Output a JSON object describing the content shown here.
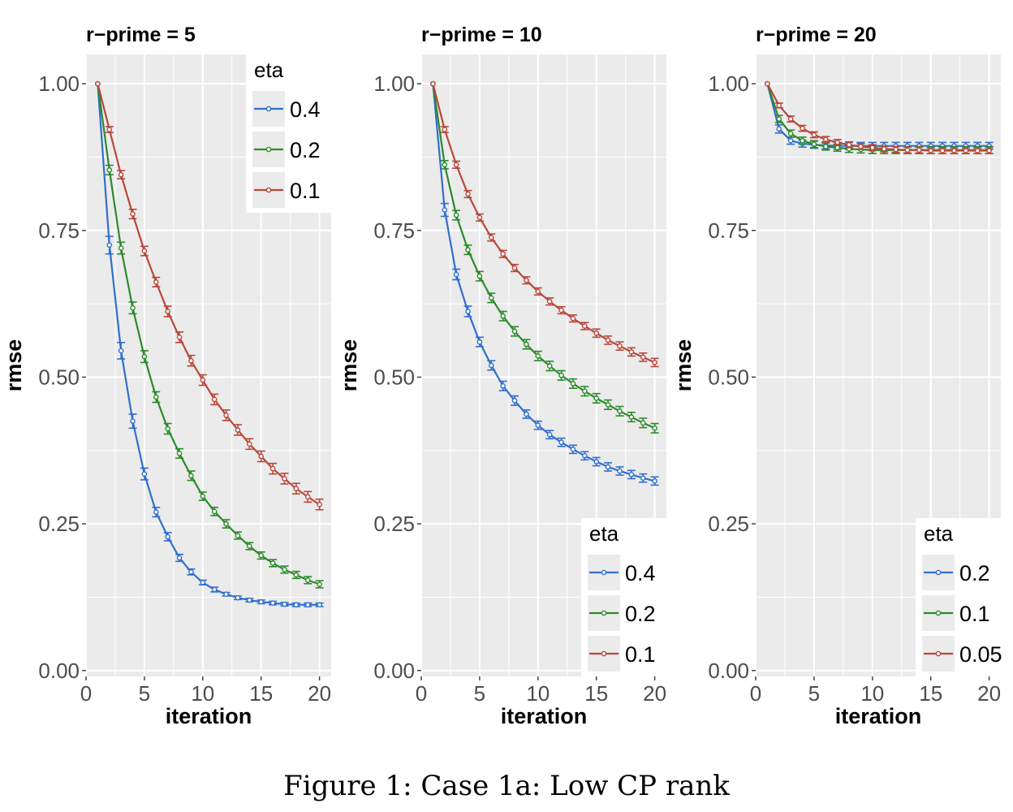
{
  "caption": "Figure 1: Case 1a: Low CP rank",
  "colors": {
    "blue": "#2f6fce",
    "green": "#2b8a2b",
    "red": "#b8473b",
    "panel_bg": "#ebebeb",
    "grid": "#ffffff",
    "axis_text": "#4d4d4d"
  },
  "chart_data": [
    {
      "type": "line",
      "title": "r−prime = 5",
      "xlabel": "iteration",
      "ylabel": "rmse",
      "xlim": [
        0,
        21
      ],
      "ylim": [
        -0.01,
        1.05
      ],
      "x_ticks": [
        0,
        5,
        10,
        15,
        20
      ],
      "y_ticks": [
        "0.00",
        "0.25",
        "0.50",
        "0.75",
        "1.00"
      ],
      "grid": true,
      "legend": {
        "title": "eta",
        "position": "top-right"
      },
      "x": [
        1,
        2,
        3,
        4,
        5,
        6,
        7,
        8,
        9,
        10,
        11,
        12,
        13,
        14,
        15,
        16,
        17,
        18,
        19,
        20
      ],
      "series": [
        {
          "name": "0.4",
          "color": "#2f6fce",
          "values": [
            1.0,
            0.725,
            0.545,
            0.425,
            0.335,
            0.27,
            0.228,
            0.192,
            0.168,
            0.15,
            0.138,
            0.13,
            0.124,
            0.12,
            0.117,
            0.115,
            0.113,
            0.112,
            0.112,
            0.112
          ],
          "error": [
            0.0,
            0.015,
            0.014,
            0.012,
            0.01,
            0.008,
            0.007,
            0.006,
            0.005,
            0.004,
            0.004,
            0.003,
            0.003,
            0.003,
            0.003,
            0.003,
            0.003,
            0.003,
            0.003,
            0.003
          ]
        },
        {
          "name": "0.2",
          "color": "#2b8a2b",
          "values": [
            1.0,
            0.853,
            0.72,
            0.618,
            0.535,
            0.466,
            0.412,
            0.37,
            0.332,
            0.297,
            0.271,
            0.25,
            0.23,
            0.212,
            0.196,
            0.183,
            0.172,
            0.163,
            0.154,
            0.147
          ],
          "error": [
            0.0,
            0.008,
            0.01,
            0.01,
            0.01,
            0.009,
            0.009,
            0.008,
            0.008,
            0.007,
            0.007,
            0.007,
            0.006,
            0.006,
            0.006,
            0.006,
            0.006,
            0.006,
            0.006,
            0.006
          ]
        },
        {
          "name": "0.1",
          "color": "#b8473b",
          "values": [
            1.0,
            0.922,
            0.845,
            0.778,
            0.715,
            0.662,
            0.612,
            0.568,
            0.528,
            0.495,
            0.462,
            0.435,
            0.41,
            0.386,
            0.365,
            0.344,
            0.327,
            0.31,
            0.296,
            0.283
          ],
          "error": [
            0.0,
            0.005,
            0.007,
            0.008,
            0.008,
            0.008,
            0.009,
            0.009,
            0.009,
            0.009,
            0.009,
            0.009,
            0.009,
            0.009,
            0.009,
            0.009,
            0.009,
            0.009,
            0.009,
            0.009
          ]
        }
      ]
    },
    {
      "type": "line",
      "title": "r−prime = 10",
      "xlabel": "iteration",
      "ylabel": "rmse",
      "xlim": [
        0,
        21
      ],
      "ylim": [
        -0.01,
        1.05
      ],
      "x_ticks": [
        0,
        5,
        10,
        15,
        20
      ],
      "y_ticks": [
        "0.00",
        "0.25",
        "0.50",
        "0.75",
        "1.00"
      ],
      "grid": true,
      "legend": {
        "title": "eta",
        "position": "bottom-right"
      },
      "x": [
        1,
        2,
        3,
        4,
        5,
        6,
        7,
        8,
        9,
        10,
        11,
        12,
        13,
        14,
        15,
        16,
        17,
        18,
        19,
        20
      ],
      "series": [
        {
          "name": "0.4",
          "color": "#2f6fce",
          "values": [
            1.0,
            0.785,
            0.675,
            0.612,
            0.56,
            0.52,
            0.485,
            0.46,
            0.437,
            0.418,
            0.402,
            0.389,
            0.377,
            0.366,
            0.356,
            0.347,
            0.34,
            0.334,
            0.328,
            0.323
          ],
          "error": [
            0.0,
            0.011,
            0.009,
            0.009,
            0.008,
            0.008,
            0.008,
            0.008,
            0.007,
            0.007,
            0.007,
            0.007,
            0.007,
            0.007,
            0.007,
            0.007,
            0.007,
            0.007,
            0.007,
            0.007
          ]
        },
        {
          "name": "0.2",
          "color": "#2b8a2b",
          "values": [
            1.0,
            0.862,
            0.776,
            0.717,
            0.672,
            0.635,
            0.604,
            0.578,
            0.556,
            0.536,
            0.519,
            0.503,
            0.489,
            0.476,
            0.464,
            0.453,
            0.442,
            0.432,
            0.422,
            0.413
          ],
          "error": [
            0.0,
            0.007,
            0.008,
            0.008,
            0.008,
            0.008,
            0.008,
            0.008,
            0.008,
            0.008,
            0.008,
            0.008,
            0.008,
            0.008,
            0.008,
            0.008,
            0.008,
            0.008,
            0.008,
            0.008
          ]
        },
        {
          "name": "0.1",
          "color": "#b8473b",
          "values": [
            1.0,
            0.922,
            0.862,
            0.812,
            0.772,
            0.738,
            0.71,
            0.686,
            0.665,
            0.646,
            0.629,
            0.614,
            0.6,
            0.587,
            0.575,
            0.563,
            0.553,
            0.543,
            0.534,
            0.525
          ],
          "error": [
            0.0,
            0.005,
            0.006,
            0.006,
            0.006,
            0.006,
            0.006,
            0.006,
            0.006,
            0.006,
            0.006,
            0.006,
            0.006,
            0.006,
            0.007,
            0.007,
            0.007,
            0.007,
            0.007,
            0.007
          ]
        }
      ]
    },
    {
      "type": "line",
      "title": "r−prime = 20",
      "xlabel": "iteration",
      "ylabel": "rmse",
      "xlim": [
        0,
        21
      ],
      "ylim": [
        -0.01,
        1.05
      ],
      "x_ticks": [
        0,
        5,
        10,
        15,
        20
      ],
      "y_ticks": [
        "0.00",
        "0.25",
        "0.50",
        "0.75",
        "1.00"
      ],
      "grid": true,
      "legend": {
        "title": "eta",
        "position": "bottom-right"
      },
      "x": [
        1,
        2,
        3,
        4,
        5,
        6,
        7,
        8,
        9,
        10,
        11,
        12,
        13,
        14,
        15,
        16,
        17,
        18,
        19,
        20
      ],
      "series": [
        {
          "name": "0.2",
          "color": "#2f6fce",
          "values": [
            1.0,
            0.923,
            0.903,
            0.898,
            0.896,
            0.895,
            0.894,
            0.894,
            0.894,
            0.894,
            0.894,
            0.894,
            0.894,
            0.894,
            0.894,
            0.894,
            0.894,
            0.894,
            0.894,
            0.894
          ],
          "error": [
            0.0,
            0.007,
            0.006,
            0.006,
            0.006,
            0.006,
            0.006,
            0.006,
            0.006,
            0.006,
            0.006,
            0.006,
            0.006,
            0.006,
            0.006,
            0.006,
            0.006,
            0.006,
            0.006,
            0.006
          ]
        },
        {
          "name": "0.1",
          "color": "#2b8a2b",
          "values": [
            1.0,
            0.94,
            0.915,
            0.903,
            0.897,
            0.893,
            0.891,
            0.889,
            0.888,
            0.887,
            0.887,
            0.887,
            0.887,
            0.887,
            0.887,
            0.887,
            0.887,
            0.887,
            0.887,
            0.887
          ],
          "error": [
            0.0,
            0.006,
            0.006,
            0.006,
            0.006,
            0.006,
            0.006,
            0.006,
            0.006,
            0.006,
            0.006,
            0.006,
            0.006,
            0.006,
            0.006,
            0.006,
            0.006,
            0.006,
            0.006,
            0.006
          ]
        },
        {
          "name": "0.05",
          "color": "#b8473b",
          "values": [
            1.0,
            0.963,
            0.94,
            0.924,
            0.913,
            0.905,
            0.9,
            0.896,
            0.893,
            0.891,
            0.889,
            0.888,
            0.887,
            0.887,
            0.886,
            0.886,
            0.886,
            0.886,
            0.886,
            0.886
          ],
          "error": [
            0.0,
            0.004,
            0.005,
            0.005,
            0.005,
            0.005,
            0.005,
            0.005,
            0.005,
            0.005,
            0.005,
            0.005,
            0.005,
            0.005,
            0.005,
            0.005,
            0.005,
            0.005,
            0.005,
            0.005
          ]
        }
      ]
    }
  ]
}
